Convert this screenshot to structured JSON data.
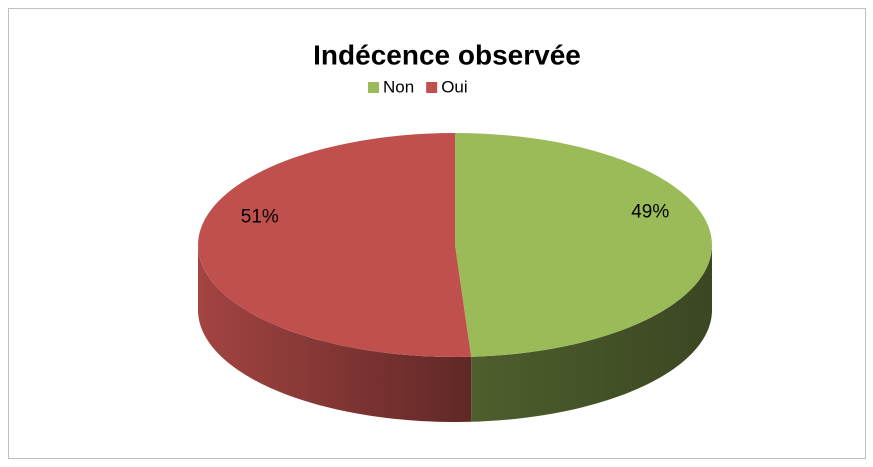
{
  "chart_data": {
    "type": "pie",
    "title": "Indécence observée",
    "categories": [
      "Non",
      "Oui"
    ],
    "values": [
      49,
      51
    ],
    "value_labels": [
      "49%",
      "51%"
    ],
    "colors": [
      "#9bbb59",
      "#c0504d"
    ],
    "legend": "top",
    "three_d": true
  }
}
